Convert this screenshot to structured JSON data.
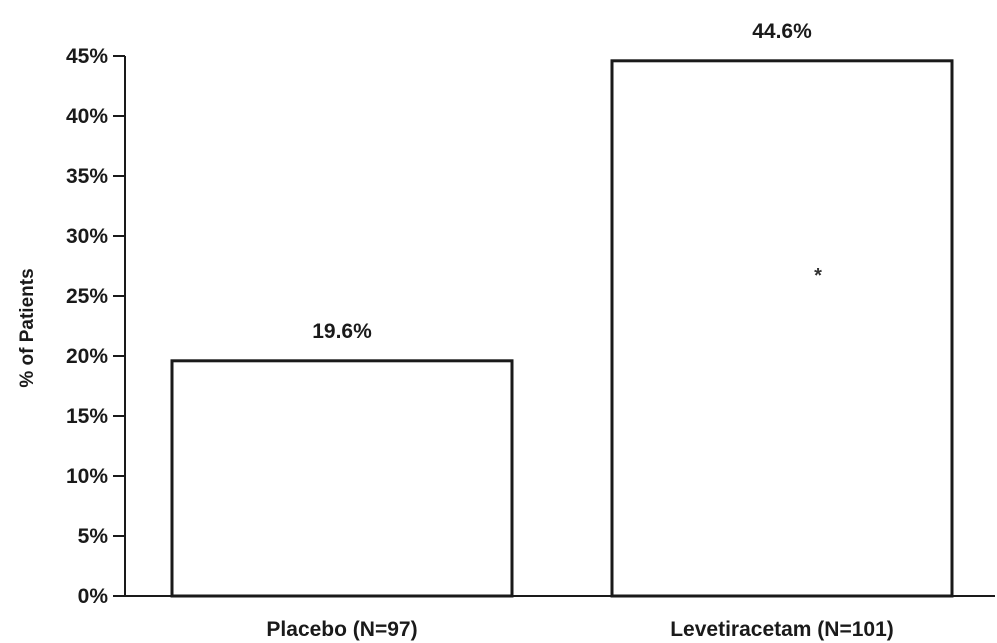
{
  "chart_data": {
    "type": "bar",
    "categories": [
      "Placebo (N=97)",
      "Levetiracetam (N=101)"
    ],
    "values": [
      19.6,
      44.6
    ],
    "value_labels": [
      "19.6%",
      "44.6%"
    ],
    "xlabel": "",
    "ylabel": "% of Patients",
    "ylim": [
      0,
      45
    ],
    "yticks": [
      0,
      5,
      10,
      15,
      20,
      25,
      30,
      35,
      40,
      45
    ],
    "ytick_labels": [
      "0%",
      "5%",
      "10%",
      "15%",
      "20%",
      "25%",
      "30%",
      "35%",
      "40%",
      "45%"
    ],
    "annotation": "*",
    "grid": false,
    "colors": {
      "bar_fill": "#ffffff",
      "bar_stroke": "#1a1a1a",
      "axis": "#1a1a1a",
      "text": "#1a1a1a"
    }
  }
}
